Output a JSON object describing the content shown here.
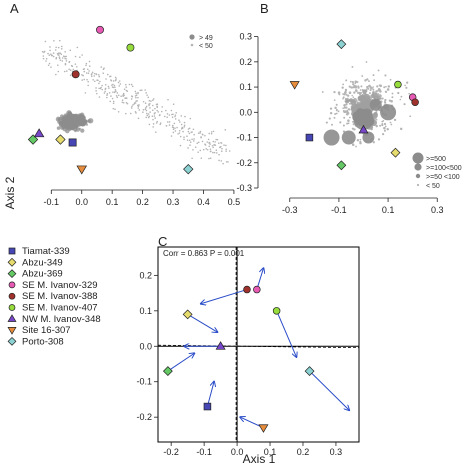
{
  "figure": {
    "axis2_label": "Axis 2",
    "axis1_label": "Axis 1"
  },
  "sites": [
    {
      "name": "Tiamat-339",
      "color": "#4646b4",
      "shape": "square"
    },
    {
      "name": "Abzu-349",
      "color": "#e6dc6e",
      "shape": "diamond"
    },
    {
      "name": "Abzu-369",
      "color": "#64c864",
      "shape": "diamond"
    },
    {
      "name": "SE M. Ivanov-329",
      "color": "#e65ab4",
      "shape": "circle"
    },
    {
      "name": "SE M. Ivanov-388",
      "color": "#a0322d",
      "shape": "circle"
    },
    {
      "name": "SE M. Ivanov-407",
      "color": "#96dc3c",
      "shape": "circle"
    },
    {
      "name": "NW M. Ivanov-348",
      "color": "#7846c8",
      "shape": "triangle"
    },
    {
      "name": "Site 16-307",
      "color": "#e68c3c",
      "shape": "triangle-down"
    },
    {
      "name": "Porto-308",
      "color": "#8cd2d2",
      "shape": "diamond"
    }
  ],
  "chart_data": [
    {
      "panel": "A",
      "type": "scatter",
      "xlim": [
        -0.17,
        0.52
      ],
      "ylim": [
        -0.25,
        0.33
      ],
      "xticks": [
        -0.1,
        0.0,
        0.1,
        0.2,
        0.3,
        0.4,
        0.5
      ],
      "xtick_labels": [
        "-0.1",
        "0.0",
        "0.1",
        "0.2",
        "0.3",
        "0.4",
        "0.5"
      ],
      "size_legend": [
        "> 49",
        "< 50"
      ],
      "sites": [
        {
          "name": "Tiamat-339",
          "x": -0.03,
          "y": -0.11
        },
        {
          "name": "Abzu-349",
          "x": -0.07,
          "y": -0.1
        },
        {
          "name": "Abzu-369",
          "x": -0.16,
          "y": -0.1
        },
        {
          "name": "SE M. Ivanov-329",
          "x": 0.06,
          "y": 0.27
        },
        {
          "name": "SE M. Ivanov-388",
          "x": -0.02,
          "y": 0.12
        },
        {
          "name": "SE M. Ivanov-407",
          "x": 0.16,
          "y": 0.21
        },
        {
          "name": "NW M. Ivanov-348",
          "x": -0.14,
          "y": -0.08
        },
        {
          "name": "Site 16-307",
          "x": 0.0,
          "y": -0.2
        },
        {
          "name": "Porto-308",
          "x": 0.35,
          "y": -0.2
        }
      ]
    },
    {
      "panel": "B",
      "type": "scatter",
      "xlim": [
        -0.36,
        0.36
      ],
      "ylim": [
        -0.3,
        0.35
      ],
      "xticks": [
        -0.3,
        -0.1,
        0.1,
        0.3
      ],
      "xtick_labels": [
        "-0.3",
        "-0.1",
        "0.1",
        "0.3"
      ],
      "yticks": [
        -0.3,
        -0.2,
        -0.1,
        0.0,
        0.1,
        0.2,
        0.3
      ],
      "ytick_labels": [
        "-0.3",
        "-0.2",
        "-0.1",
        "0.0",
        "0.1",
        "0.2",
        "0.3"
      ],
      "size_legend": [
        ">=500",
        ">=100<500",
        ">=50 <100",
        "< 50"
      ],
      "sites": [
        {
          "name": "Tiamat-339",
          "x": -0.22,
          "y": -0.1
        },
        {
          "name": "Abzu-349",
          "x": 0.13,
          "y": -0.16
        },
        {
          "name": "Abzu-369",
          "x": -0.09,
          "y": -0.21
        },
        {
          "name": "SE M. Ivanov-329",
          "x": 0.2,
          "y": 0.06
        },
        {
          "name": "SE M. Ivanov-388",
          "x": 0.21,
          "y": 0.04
        },
        {
          "name": "SE M. Ivanov-407",
          "x": 0.14,
          "y": 0.11
        },
        {
          "name": "NW M. Ivanov-348",
          "x": 0.0,
          "y": -0.07
        },
        {
          "name": "Site 16-307",
          "x": -0.28,
          "y": 0.11
        },
        {
          "name": "Porto-308",
          "x": -0.09,
          "y": 0.27
        }
      ]
    },
    {
      "panel": "C",
      "type": "scatter",
      "annotation": "Corr = 0.863   P = 0.001",
      "xlim": [
        -0.24,
        0.37
      ],
      "ylim": [
        -0.27,
        0.28
      ],
      "xticks": [
        -0.2,
        -0.1,
        0.0,
        0.1,
        0.2,
        0.3
      ],
      "xtick_labels": [
        "-0.2",
        "-0.1",
        "0.0",
        "0.1",
        "0.2",
        "0.3"
      ],
      "yticks": [
        -0.2,
        -0.1,
        0.0,
        0.1,
        0.2
      ],
      "ytick_labels": [
        "-0.2",
        "-0.1",
        "0.0",
        "0.1",
        "0.2"
      ],
      "sites": [
        {
          "name": "Tiamat-339",
          "x": -0.09,
          "y": -0.17,
          "arrow_to": [
            -0.07,
            -0.1
          ]
        },
        {
          "name": "Abzu-349",
          "x": -0.15,
          "y": 0.09,
          "arrow_to": [
            -0.06,
            0.04
          ]
        },
        {
          "name": "Abzu-369",
          "x": -0.21,
          "y": -0.07,
          "arrow_to": [
            -0.13,
            -0.02
          ]
        },
        {
          "name": "SE M. Ivanov-329",
          "x": 0.06,
          "y": 0.16,
          "arrow_to": [
            0.08,
            0.22
          ]
        },
        {
          "name": "SE M. Ivanov-388",
          "x": 0.03,
          "y": 0.16,
          "arrow_to": [
            -0.11,
            0.12
          ]
        },
        {
          "name": "SE M. Ivanov-407",
          "x": 0.12,
          "y": 0.1,
          "arrow_to": [
            0.18,
            -0.03
          ]
        },
        {
          "name": "NW M. Ivanov-348",
          "x": -0.05,
          "y": 0.0,
          "arrow_to": [
            -0.16,
            0.0
          ]
        },
        {
          "name": "Site 16-307",
          "x": 0.08,
          "y": -0.23,
          "arrow_to": [
            0.01,
            -0.2
          ]
        },
        {
          "name": "Porto-308",
          "x": 0.22,
          "y": -0.07,
          "arrow_to": [
            0.34,
            -0.18
          ]
        }
      ]
    }
  ]
}
